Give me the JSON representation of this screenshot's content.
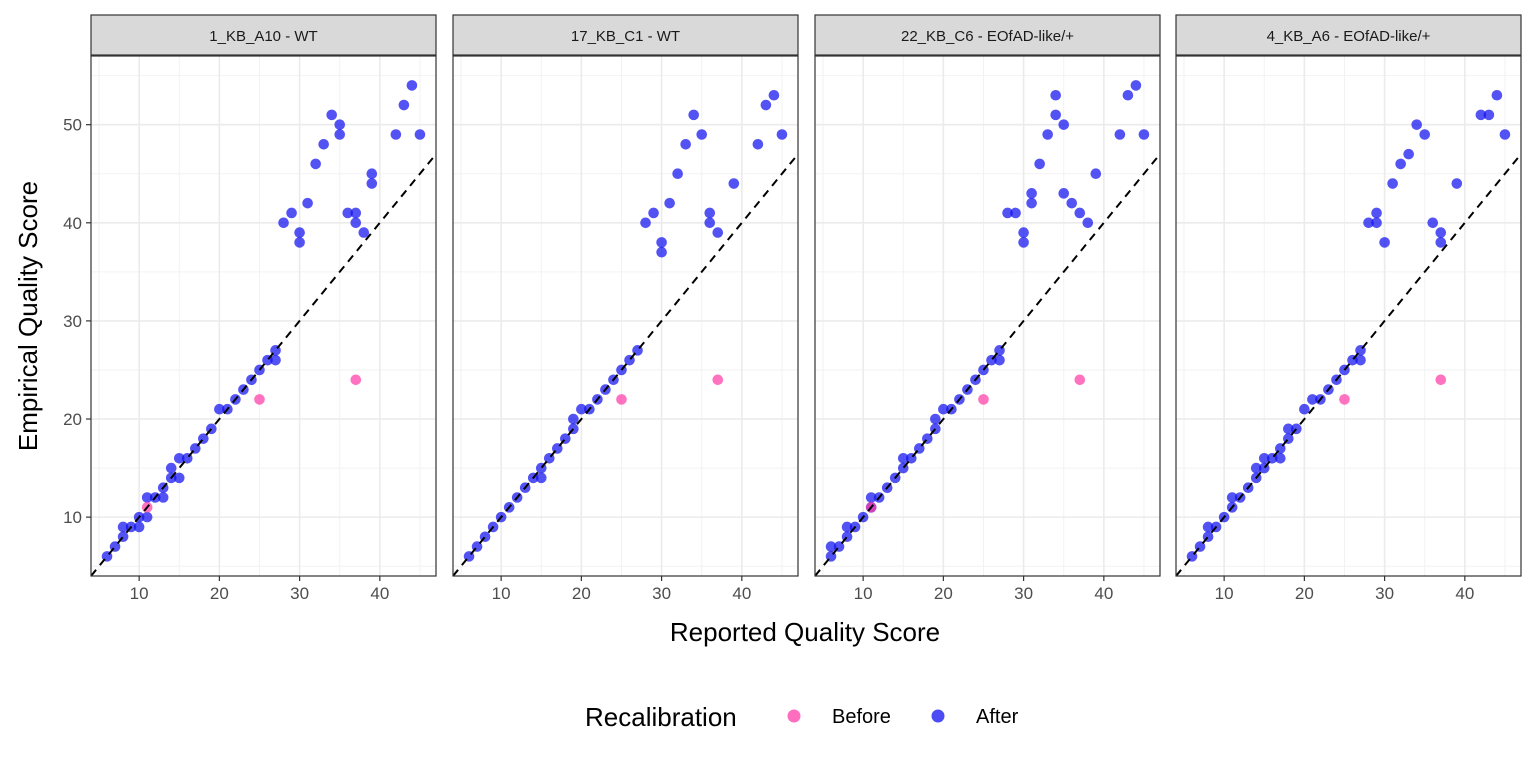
{
  "chart_data": {
    "type": "scatter",
    "xlabel": "Reported Quality Score",
    "ylabel": "Empirical Quality Score",
    "xlim": [
      4,
      47
    ],
    "ylim": [
      4,
      57
    ],
    "x_ticks": [
      10,
      20,
      30,
      40
    ],
    "y_ticks": [
      10,
      20,
      30,
      40,
      50
    ],
    "grid": true,
    "reference_line": {
      "slope": 1,
      "intercept": 0,
      "style": "dashed"
    },
    "legend": {
      "title": "Recalibration",
      "position": "bottom",
      "entries": [
        {
          "name": "Before",
          "color": "#ff3ca8"
        },
        {
          "name": "After",
          "color": "#1010f0"
        }
      ]
    },
    "series_colors": {
      "Before": "#ff3ca8",
      "After": "#1010f0"
    },
    "panels": [
      {
        "title": "1_KB_A10 - WT",
        "before": [
          [
            11,
            11
          ],
          [
            25,
            22
          ],
          [
            37,
            24
          ]
        ],
        "after": [
          [
            6,
            6
          ],
          [
            7,
            7
          ],
          [
            8,
            8
          ],
          [
            8,
            9
          ],
          [
            9,
            9
          ],
          [
            10,
            9
          ],
          [
            10,
            10
          ],
          [
            11,
            10
          ],
          [
            11,
            12
          ],
          [
            12,
            12
          ],
          [
            13,
            12
          ],
          [
            13,
            13
          ],
          [
            14,
            14
          ],
          [
            14,
            15
          ],
          [
            15,
            14
          ],
          [
            15,
            16
          ],
          [
            16,
            16
          ],
          [
            17,
            17
          ],
          [
            18,
            18
          ],
          [
            19,
            19
          ],
          [
            20,
            21
          ],
          [
            21,
            21
          ],
          [
            22,
            22
          ],
          [
            23,
            23
          ],
          [
            24,
            24
          ],
          [
            25,
            25
          ],
          [
            26,
            26
          ],
          [
            27,
            26
          ],
          [
            27,
            27
          ],
          [
            28,
            40
          ],
          [
            29,
            41
          ],
          [
            30,
            38
          ],
          [
            30,
            39
          ],
          [
            31,
            42
          ],
          [
            32,
            46
          ],
          [
            33,
            48
          ],
          [
            34,
            51
          ],
          [
            35,
            49
          ],
          [
            35,
            50
          ],
          [
            36,
            41
          ],
          [
            37,
            40
          ],
          [
            37,
            41
          ],
          [
            38,
            39
          ],
          [
            39,
            44
          ],
          [
            39,
            45
          ],
          [
            42,
            49
          ],
          [
            43,
            52
          ],
          [
            44,
            54
          ],
          [
            45,
            49
          ]
        ]
      },
      {
        "title": "17_KB_C1 - WT",
        "before": [
          [
            25,
            22
          ],
          [
            37,
            24
          ]
        ],
        "after": [
          [
            6,
            6
          ],
          [
            7,
            7
          ],
          [
            8,
            8
          ],
          [
            9,
            9
          ],
          [
            10,
            10
          ],
          [
            11,
            11
          ],
          [
            12,
            12
          ],
          [
            13,
            13
          ],
          [
            14,
            14
          ],
          [
            15,
            14
          ],
          [
            15,
            15
          ],
          [
            16,
            16
          ],
          [
            17,
            17
          ],
          [
            18,
            18
          ],
          [
            19,
            19
          ],
          [
            19,
            20
          ],
          [
            20,
            21
          ],
          [
            21,
            21
          ],
          [
            22,
            22
          ],
          [
            23,
            23
          ],
          [
            24,
            24
          ],
          [
            25,
            25
          ],
          [
            26,
            26
          ],
          [
            27,
            27
          ],
          [
            28,
            40
          ],
          [
            29,
            41
          ],
          [
            30,
            37
          ],
          [
            30,
            38
          ],
          [
            31,
            42
          ],
          [
            32,
            45
          ],
          [
            33,
            48
          ],
          [
            34,
            51
          ],
          [
            35,
            49
          ],
          [
            36,
            40
          ],
          [
            36,
            41
          ],
          [
            37,
            39
          ],
          [
            39,
            44
          ],
          [
            42,
            48
          ],
          [
            43,
            52
          ],
          [
            44,
            53
          ],
          [
            45,
            49
          ]
        ]
      },
      {
        "title": "22_KB_C6 - EOfAD-like/+",
        "before": [
          [
            11,
            11
          ],
          [
            25,
            22
          ],
          [
            37,
            24
          ]
        ],
        "after": [
          [
            6,
            6
          ],
          [
            6,
            7
          ],
          [
            7,
            7
          ],
          [
            8,
            8
          ],
          [
            8,
            9
          ],
          [
            9,
            9
          ],
          [
            10,
            10
          ],
          [
            11,
            11
          ],
          [
            11,
            12
          ],
          [
            12,
            12
          ],
          [
            13,
            13
          ],
          [
            14,
            14
          ],
          [
            15,
            15
          ],
          [
            15,
            16
          ],
          [
            16,
            16
          ],
          [
            17,
            17
          ],
          [
            18,
            18
          ],
          [
            19,
            19
          ],
          [
            19,
            20
          ],
          [
            20,
            21
          ],
          [
            21,
            21
          ],
          [
            22,
            22
          ],
          [
            23,
            23
          ],
          [
            24,
            24
          ],
          [
            25,
            25
          ],
          [
            26,
            26
          ],
          [
            27,
            26
          ],
          [
            27,
            27
          ],
          [
            28,
            41
          ],
          [
            29,
            41
          ],
          [
            30,
            38
          ],
          [
            30,
            39
          ],
          [
            31,
            42
          ],
          [
            31,
            43
          ],
          [
            32,
            46
          ],
          [
            33,
            49
          ],
          [
            34,
            51
          ],
          [
            34,
            53
          ],
          [
            35,
            43
          ],
          [
            35,
            50
          ],
          [
            36,
            42
          ],
          [
            37,
            41
          ],
          [
            38,
            40
          ],
          [
            39,
            45
          ],
          [
            42,
            49
          ],
          [
            43,
            53
          ],
          [
            44,
            54
          ],
          [
            45,
            49
          ]
        ]
      },
      {
        "title": "4_KB_A6 - EOfAD-like/+",
        "before": [
          [
            25,
            22
          ],
          [
            37,
            24
          ]
        ],
        "after": [
          [
            6,
            6
          ],
          [
            7,
            7
          ],
          [
            8,
            8
          ],
          [
            8,
            9
          ],
          [
            9,
            9
          ],
          [
            10,
            10
          ],
          [
            11,
            11
          ],
          [
            11,
            12
          ],
          [
            12,
            12
          ],
          [
            13,
            13
          ],
          [
            14,
            14
          ],
          [
            14,
            15
          ],
          [
            15,
            15
          ],
          [
            15,
            16
          ],
          [
            16,
            16
          ],
          [
            17,
            16
          ],
          [
            17,
            17
          ],
          [
            18,
            18
          ],
          [
            18,
            19
          ],
          [
            19,
            19
          ],
          [
            20,
            21
          ],
          [
            21,
            22
          ],
          [
            22,
            22
          ],
          [
            23,
            23
          ],
          [
            24,
            24
          ],
          [
            25,
            25
          ],
          [
            26,
            26
          ],
          [
            27,
            26
          ],
          [
            27,
            27
          ],
          [
            28,
            40
          ],
          [
            29,
            40
          ],
          [
            29,
            41
          ],
          [
            30,
            38
          ],
          [
            31,
            44
          ],
          [
            32,
            46
          ],
          [
            33,
            47
          ],
          [
            34,
            50
          ],
          [
            35,
            49
          ],
          [
            36,
            40
          ],
          [
            37,
            38
          ],
          [
            37,
            39
          ],
          [
            39,
            44
          ],
          [
            42,
            51
          ],
          [
            43,
            51
          ],
          [
            44,
            53
          ],
          [
            45,
            49
          ]
        ]
      }
    ]
  }
}
